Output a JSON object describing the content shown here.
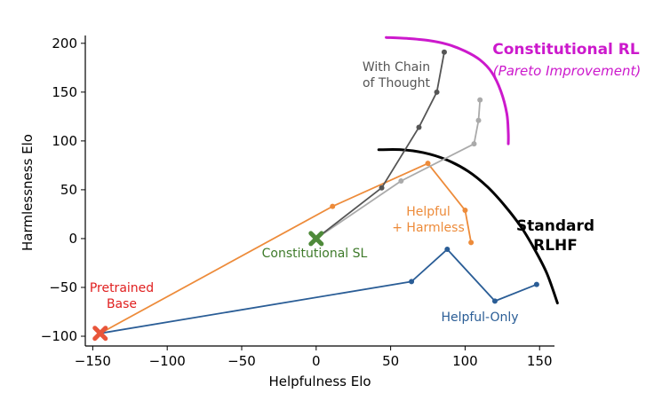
{
  "chart_data": {
    "type": "line",
    "xlabel": "Helpfulness Elo",
    "ylabel": "Harmlessness Elo",
    "xlim": [
      -155,
      160
    ],
    "ylim": [
      -110,
      208
    ],
    "xticks": [
      -150,
      -100,
      -50,
      0,
      50,
      100,
      150
    ],
    "yticks": [
      -100,
      -50,
      0,
      50,
      100,
      150,
      200
    ],
    "xtick_labels": [
      "−150",
      "−100",
      "−50",
      "0",
      "50",
      "100",
      "150"
    ],
    "ytick_labels": [
      "−100",
      "−50",
      "0",
      "50",
      "100",
      "150",
      "200"
    ],
    "grid": false,
    "series": [
      {
        "name": "Helpful-Only",
        "color": "#2a5d96",
        "points": [
          [
            -145,
            -97
          ],
          [
            64,
            -44
          ],
          [
            88,
            -11
          ],
          [
            120,
            -64
          ],
          [
            148,
            -47
          ]
        ]
      },
      {
        "name": "Helpful + Harmless",
        "color": "#ed8b3a",
        "points": [
          [
            -145,
            -97
          ],
          [
            11,
            33
          ],
          [
            75,
            77
          ],
          [
            100,
            29
          ],
          [
            104,
            -4
          ]
        ]
      },
      {
        "name": "",
        "color": "#aaaaaa",
        "points": [
          [
            0,
            0
          ],
          [
            57,
            59
          ],
          [
            106,
            97
          ],
          [
            109,
            121
          ],
          [
            110,
            142
          ]
        ]
      },
      {
        "name": "With Chain of Thought",
        "color": "#555555",
        "points": [
          [
            0,
            0
          ],
          [
            44,
            52
          ],
          [
            69,
            114
          ],
          [
            81,
            150
          ],
          [
            86,
            191
          ]
        ]
      }
    ],
    "frontiers": [
      {
        "name": "Standard RLHF",
        "color": "#000000",
        "points": [
          [
            42,
            91
          ],
          [
            57,
            91
          ],
          [
            72,
            88
          ],
          [
            87,
            81
          ],
          [
            102,
            69
          ],
          [
            115,
            53
          ],
          [
            127,
            33
          ],
          [
            138,
            11
          ],
          [
            147,
            -12
          ],
          [
            155,
            -36
          ],
          [
            162,
            -66
          ]
        ]
      },
      {
        "name": "Constitutional RL",
        "color": "#cc19cc",
        "points": [
          [
            47,
            206
          ],
          [
            61,
            205
          ],
          [
            75,
            203
          ],
          [
            88,
            199
          ],
          [
            100,
            192
          ],
          [
            110,
            183
          ],
          [
            118,
            170
          ],
          [
            124,
            151
          ],
          [
            128,
            128
          ],
          [
            129,
            108
          ],
          [
            129,
            97
          ]
        ]
      }
    ],
    "markers": [
      {
        "name": "Pretrained Base",
        "point": [
          -145,
          -97
        ],
        "color": "#e8553a"
      },
      {
        "name": "Constitutional SL",
        "point": [
          0,
          0
        ],
        "color": "#4e8a3a"
      }
    ]
  },
  "annotations": {
    "constitutional_rl": "Constitutional RL",
    "pareto": "(Pareto Improvement)",
    "chain_line1": "With Chain",
    "chain_line2": "of Thought",
    "helpful_harmless_line1": "Helpful",
    "helpful_harmless_line2": "+ Harmless",
    "standard_line1": "Standard",
    "standard_line2": "RLHF",
    "constitutional_sl": "Constitutional SL",
    "pretrained_line1": "Pretrained",
    "pretrained_line2": "Base",
    "helpful_only": "Helpful-Only"
  }
}
